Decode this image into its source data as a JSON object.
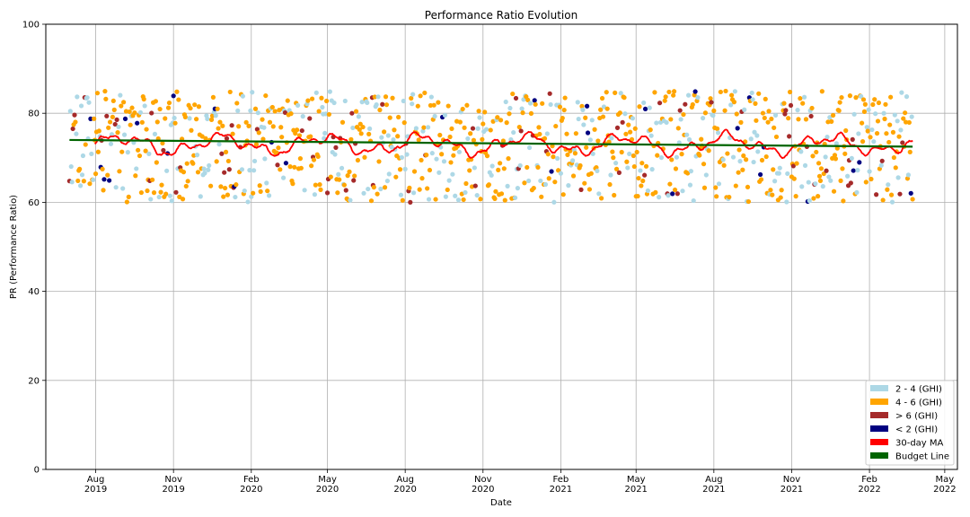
{
  "chart_data": {
    "type": "scatter",
    "title": "Performance Ratio Evolution",
    "xlabel": "Date",
    "ylabel": "PR (Performance Ratio)",
    "ylim": [
      0,
      100
    ],
    "xlim": [
      "2019-06-03",
      "2022-05-16"
    ],
    "y_ticks": [
      0,
      20,
      40,
      60,
      80,
      100
    ],
    "x_ticks": [
      {
        "date": "2019-08-01",
        "label": "Aug\n2019"
      },
      {
        "date": "2019-11-01",
        "label": "Nov\n2019"
      },
      {
        "date": "2020-02-01",
        "label": "Feb\n2020"
      },
      {
        "date": "2020-05-01",
        "label": "May\n2020"
      },
      {
        "date": "2020-08-01",
        "label": "Aug\n2020"
      },
      {
        "date": "2020-11-01",
        "label": "Nov\n2020"
      },
      {
        "date": "2021-02-01",
        "label": "Feb\n2021"
      },
      {
        "date": "2021-05-01",
        "label": "May\n2021"
      },
      {
        "date": "2021-08-01",
        "label": "Aug\n2021"
      },
      {
        "date": "2021-11-01",
        "label": "Nov\n2021"
      },
      {
        "date": "2022-02-01",
        "label": "Feb\n2022"
      },
      {
        "date": "2022-05-01",
        "label": "May\n2022"
      }
    ],
    "grid": true,
    "legend_position": "bottom-right",
    "date_range": [
      "2019-07-01",
      "2022-03-24"
    ],
    "point_y_range": [
      60,
      85
    ],
    "series": [
      {
        "name": "2 - 4 (GHI)",
        "kind": "scatter",
        "color": "#add8e6",
        "share": 0.3
      },
      {
        "name": "4 - 6 (GHI)",
        "kind": "scatter",
        "color": "#ffa500",
        "share": 0.58
      },
      {
        "name": "> 6 (GHI)",
        "kind": "scatter",
        "color": "#a52a2a",
        "share": 0.09
      },
      {
        "name": "< 2 (GHI)",
        "kind": "scatter",
        "color": "#000080",
        "share": 0.03
      },
      {
        "name": "30-day MA",
        "kind": "line",
        "color": "#ff0000",
        "mean": 73,
        "range": [
          69,
          77
        ]
      },
      {
        "name": "Budget Line",
        "kind": "line",
        "color": "#006400",
        "start_value": 74.0,
        "end_value": 72.5
      }
    ]
  }
}
